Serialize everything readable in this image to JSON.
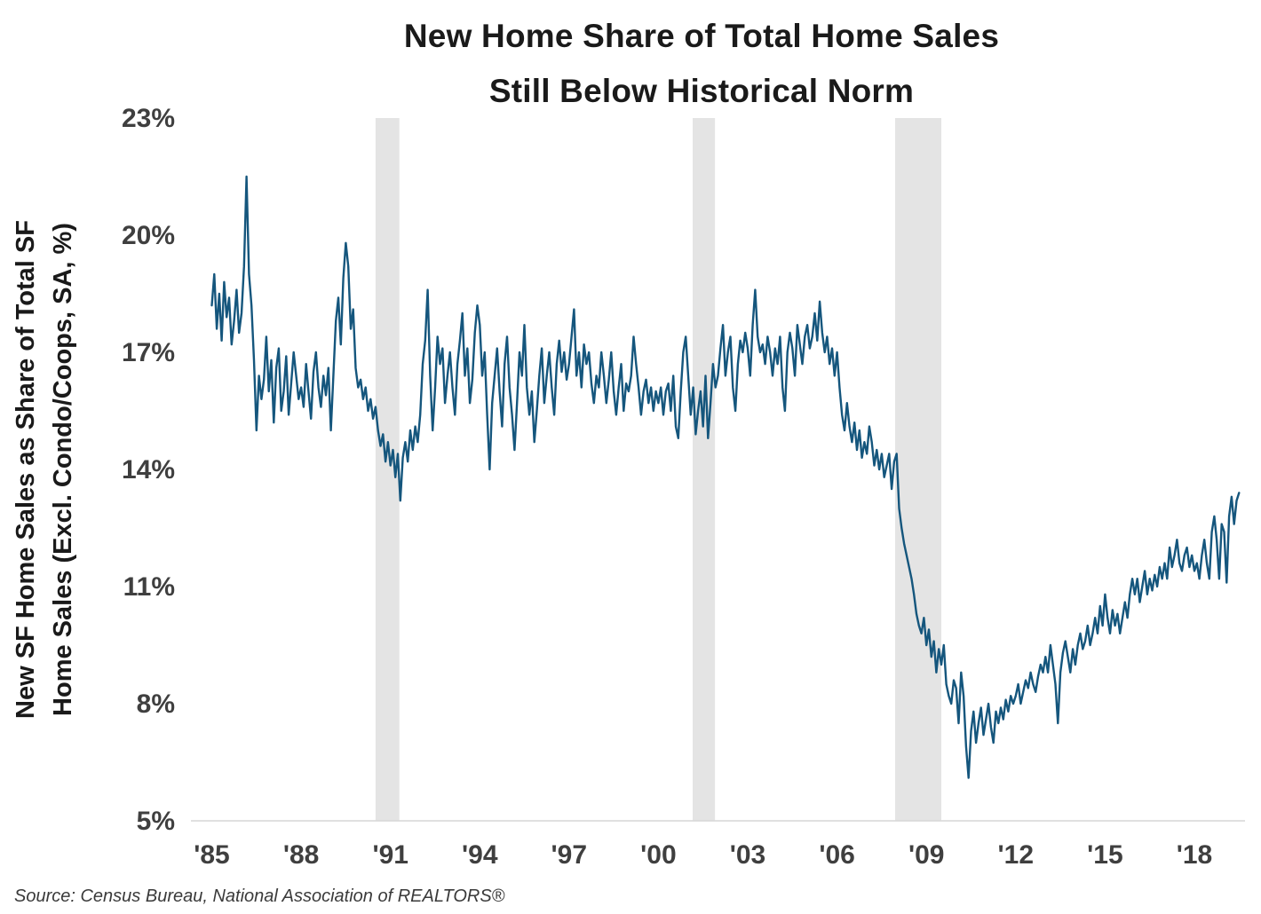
{
  "title": {
    "line1": "New Home Share of Total Home Sales",
    "line2": "Still Below Historical Norm"
  },
  "source": "Source: Census Bureau, National Association of REALTORS®",
  "chart_data": {
    "type": "line",
    "title": "New Home Share of Total Home Sales Still Below Historical Norm",
    "ylabel_line1": "New SF Home Sales as Share of Total SF",
    "ylabel_line2": "Home Sales (Excl. Condo/Coops, SA, %)",
    "xlabel": "",
    "ylim": [
      5,
      23
    ],
    "yticks": [
      5,
      8,
      11,
      14,
      17,
      20,
      23
    ],
    "ytick_suffix": "%",
    "xlim": [
      1984.3,
      2019.7
    ],
    "xticks": [
      1985,
      1988,
      1991,
      1994,
      1997,
      2000,
      2003,
      2006,
      2009,
      2012,
      2015,
      2018
    ],
    "xtick_labels": [
      "'85",
      "'88",
      "'91",
      "'94",
      "'97",
      "'00",
      "'03",
      "'06",
      "'09",
      "'12",
      "'15",
      "'18"
    ],
    "grid": false,
    "legend": "none",
    "line_color": "#15567D",
    "recession_band_color": "#e4e4e4",
    "recessions": [
      [
        1990.5,
        1991.3
      ],
      [
        2001.15,
        2001.9
      ],
      [
        2007.95,
        2009.5
      ]
    ],
    "series": [
      {
        "name": "New SF home sales as share of total SF home sales (%)",
        "frequency": "monthly",
        "start_year": 1985,
        "values": [
          18.2,
          19.0,
          17.6,
          18.5,
          17.3,
          18.8,
          17.9,
          18.4,
          17.2,
          17.8,
          18.6,
          17.5,
          18.0,
          19.2,
          21.5,
          19.0,
          18.2,
          16.8,
          15.0,
          16.4,
          15.8,
          16.3,
          17.4,
          16.0,
          16.8,
          15.2,
          16.6,
          17.1,
          15.5,
          16.0,
          16.9,
          15.4,
          16.2,
          17.0,
          16.4,
          15.8,
          16.1,
          15.6,
          16.7,
          16.0,
          15.3,
          16.5,
          17.0,
          16.1,
          15.6,
          16.4,
          15.9,
          16.6,
          15.0,
          16.4,
          17.8,
          18.4,
          17.2,
          18.9,
          19.8,
          19.2,
          17.6,
          18.1,
          16.6,
          16.1,
          16.3,
          15.8,
          16.1,
          15.5,
          15.8,
          15.3,
          15.6,
          15.0,
          14.6,
          14.9,
          14.2,
          14.7,
          14.1,
          14.5,
          13.8,
          14.4,
          13.2,
          14.3,
          14.7,
          14.2,
          15.0,
          14.5,
          15.1,
          14.7,
          15.4,
          16.7,
          17.3,
          18.6,
          16.4,
          15.0,
          16.1,
          17.4,
          16.7,
          17.1,
          15.7,
          16.4,
          17.0,
          16.1,
          15.4,
          16.7,
          17.3,
          18.0,
          16.4,
          17.1,
          15.7,
          16.3,
          17.5,
          18.2,
          17.7,
          16.4,
          17.0,
          15.4,
          14.0,
          15.7,
          16.4,
          17.1,
          16.0,
          15.1,
          16.7,
          17.4,
          16.1,
          15.4,
          14.5,
          15.7,
          17.0,
          16.4,
          17.7,
          16.1,
          15.4,
          16.0,
          14.7,
          15.5,
          16.4,
          17.1,
          15.7,
          16.4,
          17.0,
          16.1,
          15.4,
          16.7,
          17.3,
          16.5,
          17.0,
          16.3,
          16.7,
          17.4,
          18.1,
          16.4,
          17.0,
          16.1,
          17.2,
          16.7,
          17.0,
          16.2,
          15.7,
          16.4,
          16.1,
          17.0,
          16.4,
          15.7,
          16.3,
          17.0,
          16.0,
          15.4,
          16.1,
          16.7,
          15.5,
          16.2,
          16.0,
          16.4,
          17.4,
          16.7,
          16.1,
          15.4,
          16.0,
          16.3,
          15.7,
          16.1,
          15.5,
          16.0,
          15.7,
          16.1,
          15.4,
          16.0,
          16.2,
          15.5,
          16.4,
          15.1,
          14.8,
          16.0,
          17.0,
          17.4,
          16.4,
          15.4,
          16.1,
          14.9,
          15.5,
          16.0,
          15.1,
          16.4,
          14.8,
          15.7,
          16.7,
          16.1,
          16.4,
          17.1,
          17.7,
          16.4,
          17.0,
          17.4,
          16.1,
          15.5,
          16.7,
          17.3,
          17.0,
          17.5,
          17.1,
          16.4,
          17.7,
          18.6,
          17.4,
          17.0,
          17.2,
          16.7,
          17.4,
          17.0,
          16.4,
          17.1,
          16.7,
          17.4,
          16.1,
          15.5,
          17.0,
          17.5,
          17.1,
          16.4,
          17.7,
          17.2,
          16.7,
          17.4,
          17.7,
          17.1,
          17.4,
          18.0,
          17.3,
          18.3,
          17.5,
          17.0,
          17.4,
          16.7,
          17.1,
          16.4,
          17.0,
          16.1,
          15.4,
          15.0,
          15.7,
          15.1,
          14.7,
          15.2,
          14.5,
          15.0,
          14.3,
          14.7,
          14.4,
          15.1,
          14.7,
          14.1,
          14.5,
          14.0,
          14.4,
          13.8,
          14.1,
          14.4,
          13.5,
          14.2,
          14.4,
          13.0,
          12.5,
          12.1,
          11.8,
          11.5,
          11.2,
          10.8,
          10.3,
          10.0,
          9.8,
          10.2,
          9.5,
          9.9,
          9.2,
          9.6,
          8.8,
          9.4,
          9.0,
          9.5,
          8.5,
          8.2,
          8.0,
          8.6,
          8.4,
          7.5,
          8.8,
          8.2,
          6.9,
          6.1,
          7.3,
          7.8,
          7.0,
          7.5,
          7.9,
          7.2,
          7.6,
          8.0,
          7.4,
          7.0,
          7.8,
          7.5,
          7.9,
          7.6,
          8.1,
          7.8,
          8.2,
          8.0,
          8.2,
          8.5,
          8.0,
          8.3,
          8.6,
          8.4,
          8.8,
          8.5,
          8.3,
          8.7,
          9.0,
          8.8,
          9.2,
          8.8,
          9.5,
          9.0,
          8.5,
          7.5,
          8.8,
          9.3,
          9.6,
          9.2,
          8.8,
          9.4,
          9.0,
          9.5,
          9.8,
          9.4,
          9.6,
          10.0,
          9.5,
          9.8,
          10.2,
          9.8,
          10.5,
          10.0,
          10.8,
          10.2,
          9.8,
          10.4,
          10.0,
          10.3,
          9.8,
          10.2,
          10.6,
          10.2,
          10.8,
          11.2,
          10.8,
          11.2,
          10.6,
          11.0,
          11.4,
          10.8,
          11.2,
          10.9,
          11.3,
          11.0,
          11.5,
          11.2,
          11.6,
          11.2,
          12.0,
          11.5,
          11.8,
          12.2,
          11.6,
          11.4,
          11.8,
          12.0,
          11.5,
          11.8,
          11.4,
          11.6,
          11.2,
          11.8,
          12.2,
          11.6,
          11.2,
          12.4,
          12.8,
          12.2,
          11.2,
          12.6,
          12.4,
          11.1,
          12.8,
          13.3,
          12.6,
          13.2,
          13.4
        ]
      }
    ]
  }
}
